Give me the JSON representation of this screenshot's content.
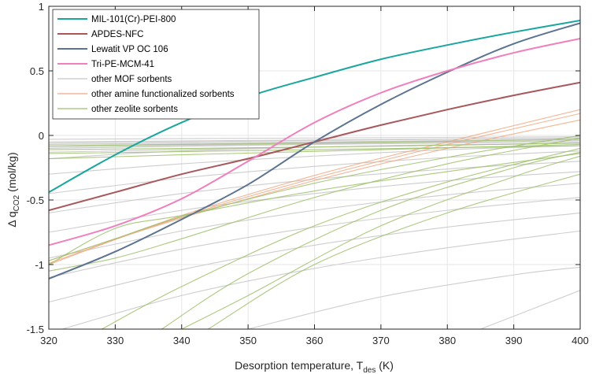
{
  "chart_data": {
    "type": "line",
    "title": "",
    "xlabel": {
      "main": "Desorption temperature, T",
      "sub": "des",
      "unit": " (K)"
    },
    "ylabel": {
      "main": "Δ q",
      "sub": "CO2",
      "unit": " (mol/kg)"
    },
    "xlim": [
      320,
      400
    ],
    "ylim": [
      -1.5,
      1
    ],
    "xticks": [
      320,
      330,
      340,
      350,
      360,
      370,
      380,
      390,
      400
    ],
    "yticks": [
      -1.5,
      -1,
      -0.5,
      0,
      0.5,
      1
    ],
    "ytick_labels": [
      "-1.5",
      "-1",
      "-0.5",
      "0",
      "0.5",
      "1"
    ],
    "legend_position": "top-left",
    "highlight_series": [
      {
        "name": "MIL-101(Cr)-PEI-800",
        "color": "#1aa69f",
        "points": [
          [
            320,
            -0.44
          ],
          [
            330,
            -0.15
          ],
          [
            340,
            0.1
          ],
          [
            350,
            0.3
          ],
          [
            360,
            0.45
          ],
          [
            370,
            0.59
          ],
          [
            380,
            0.7
          ],
          [
            390,
            0.8
          ],
          [
            400,
            0.89
          ]
        ]
      },
      {
        "name": "APDES-NFC",
        "color": "#a8585a",
        "points": [
          [
            320,
            -0.58
          ],
          [
            330,
            -0.44
          ],
          [
            340,
            -0.3
          ],
          [
            350,
            -0.18
          ],
          [
            360,
            -0.05
          ],
          [
            370,
            0.08
          ],
          [
            380,
            0.2
          ],
          [
            390,
            0.31
          ],
          [
            400,
            0.41
          ]
        ]
      },
      {
        "name": "Lewatit VP OC 106",
        "color": "#5b7391",
        "points": [
          [
            320,
            -1.11
          ],
          [
            330,
            -0.9
          ],
          [
            340,
            -0.65
          ],
          [
            350,
            -0.38
          ],
          [
            360,
            -0.05
          ],
          [
            370,
            0.24
          ],
          [
            380,
            0.49
          ],
          [
            390,
            0.71
          ],
          [
            400,
            0.87
          ]
        ]
      },
      {
        "name": "Tri-PE-MCM-41",
        "color": "#ef7fbd",
        "points": [
          [
            320,
            -0.85
          ],
          [
            330,
            -0.7
          ],
          [
            340,
            -0.49
          ],
          [
            350,
            -0.2
          ],
          [
            360,
            0.1
          ],
          [
            370,
            0.33
          ],
          [
            380,
            0.5
          ],
          [
            390,
            0.64
          ],
          [
            400,
            0.75
          ]
        ]
      }
    ],
    "background_groups": [
      {
        "name": "other MOF sorbents",
        "color": "#c8c8c8",
        "series": [
          [
            [
              320,
              -0.03
            ],
            [
              400,
              -0.01
            ]
          ],
          [
            [
              320,
              -0.05
            ],
            [
              400,
              -0.02
            ]
          ],
          [
            [
              320,
              -0.06
            ],
            [
              400,
              -0.02
            ]
          ],
          [
            [
              320,
              -0.07
            ],
            [
              400,
              -0.03
            ]
          ],
          [
            [
              320,
              -0.08
            ],
            [
              400,
              -0.03
            ]
          ],
          [
            [
              320,
              -0.09
            ],
            [
              400,
              -0.04
            ]
          ],
          [
            [
              320,
              -0.1
            ],
            [
              360,
              -0.07
            ],
            [
              400,
              -0.05
            ]
          ],
          [
            [
              320,
              -0.13
            ],
            [
              360,
              -0.09
            ],
            [
              400,
              -0.06
            ]
          ],
          [
            [
              320,
              -0.18
            ],
            [
              340,
              -0.12
            ],
            [
              370,
              -0.08
            ],
            [
              400,
              -0.06
            ]
          ],
          [
            [
              320,
              -0.3
            ],
            [
              340,
              -0.22
            ],
            [
              360,
              -0.16
            ],
            [
              380,
              -0.11
            ],
            [
              400,
              -0.08
            ]
          ],
          [
            [
              320,
              -0.45
            ],
            [
              340,
              -0.33
            ],
            [
              360,
              -0.24
            ],
            [
              380,
              -0.17
            ],
            [
              400,
              -0.12
            ]
          ],
          [
            [
              320,
              -0.6
            ],
            [
              340,
              -0.45
            ],
            [
              360,
              -0.34
            ],
            [
              380,
              -0.26
            ],
            [
              400,
              -0.2
            ]
          ],
          [
            [
              320,
              -0.75
            ],
            [
              340,
              -0.58
            ],
            [
              360,
              -0.45
            ],
            [
              380,
              -0.35
            ],
            [
              400,
              -0.28
            ]
          ],
          [
            [
              320,
              -0.95
            ],
            [
              340,
              -0.74
            ],
            [
              360,
              -0.58
            ],
            [
              380,
              -0.46
            ],
            [
              400,
              -0.37
            ]
          ],
          [
            [
              320,
              -1.1
            ],
            [
              340,
              -0.88
            ],
            [
              360,
              -0.71
            ],
            [
              380,
              -0.58
            ],
            [
              400,
              -0.48
            ]
          ],
          [
            [
              320,
              -1.29
            ],
            [
              340,
              -1.04
            ],
            [
              360,
              -0.85
            ],
            [
              380,
              -0.71
            ],
            [
              400,
              -0.6
            ]
          ],
          [
            [
              322,
              -1.5
            ],
            [
              340,
              -1.24
            ],
            [
              360,
              -1.03
            ],
            [
              380,
              -0.87
            ],
            [
              400,
              -0.74
            ]
          ],
          [
            [
              350,
              -1.5
            ],
            [
              370,
              -1.25
            ],
            [
              390,
              -1.08
            ],
            [
              400,
              -1.02
            ]
          ],
          [
            [
              385,
              -1.5
            ],
            [
              400,
              -1.2
            ]
          ]
        ]
      },
      {
        "name": "other amine functionalized sorbents",
        "color": "#f2a882",
        "series": [
          [
            [
              320,
              -1.0
            ],
            [
              340,
              -0.62
            ],
            [
              360,
              -0.31
            ],
            [
              380,
              -0.05
            ],
            [
              400,
              0.2
            ]
          ],
          [
            [
              320,
              -0.99
            ],
            [
              340,
              -0.63
            ],
            [
              360,
              -0.33
            ],
            [
              380,
              -0.07
            ],
            [
              400,
              0.17
            ]
          ],
          [
            [
              320,
              -0.97
            ],
            [
              340,
              -0.64
            ],
            [
              360,
              -0.35
            ],
            [
              380,
              -0.1
            ],
            [
              400,
              0.12
            ]
          ]
        ]
      },
      {
        "name": "other zeolite sorbents",
        "color": "#9cc069",
        "series": [
          [
            [
              320,
              -0.08
            ],
            [
              360,
              -0.06
            ],
            [
              400,
              -0.03
            ]
          ],
          [
            [
              320,
              -0.11
            ],
            [
              360,
              -0.09
            ],
            [
              400,
              -0.06
            ]
          ],
          [
            [
              320,
              -0.14
            ],
            [
              360,
              -0.11
            ],
            [
              400,
              -0.08
            ]
          ],
          [
            [
              320,
              -0.18
            ],
            [
              340,
              -0.15
            ],
            [
              370,
              -0.11
            ],
            [
              400,
              -0.07
            ]
          ],
          [
            [
              320,
              -1.0
            ],
            [
              330,
              -0.72
            ],
            [
              340,
              -0.62
            ],
            [
              360,
              -0.43
            ],
            [
              380,
              -0.28
            ],
            [
              400,
              -0.14
            ]
          ],
          [
            [
              320,
              -0.97
            ],
            [
              330,
              -0.8
            ],
            [
              340,
              -0.63
            ],
            [
              360,
              -0.37
            ],
            [
              380,
              -0.17
            ],
            [
              400,
              0.0
            ]
          ],
          [
            [
              320,
              -1.05
            ],
            [
              330,
              -0.95
            ],
            [
              340,
              -0.8
            ],
            [
              360,
              -0.48
            ],
            [
              380,
              -0.22
            ],
            [
              400,
              -0.02
            ]
          ],
          [
            [
              328,
              -1.5
            ],
            [
              340,
              -1.17
            ],
            [
              360,
              -0.7
            ],
            [
              380,
              -0.36
            ],
            [
              400,
              -0.1
            ]
          ],
          [
            [
              337,
              -1.5
            ],
            [
              350,
              -1.07
            ],
            [
              370,
              -0.58
            ],
            [
              390,
              -0.25
            ],
            [
              400,
              -0.13
            ]
          ],
          [
            [
              340,
              -1.5
            ],
            [
              350,
              -1.24
            ],
            [
              370,
              -0.7
            ],
            [
              390,
              -0.32
            ],
            [
              400,
              -0.16
            ]
          ],
          [
            [
              344,
              -1.5
            ],
            [
              360,
              -1.0
            ],
            [
              380,
              -0.6
            ],
            [
              400,
              -0.3
            ]
          ]
        ]
      }
    ]
  }
}
